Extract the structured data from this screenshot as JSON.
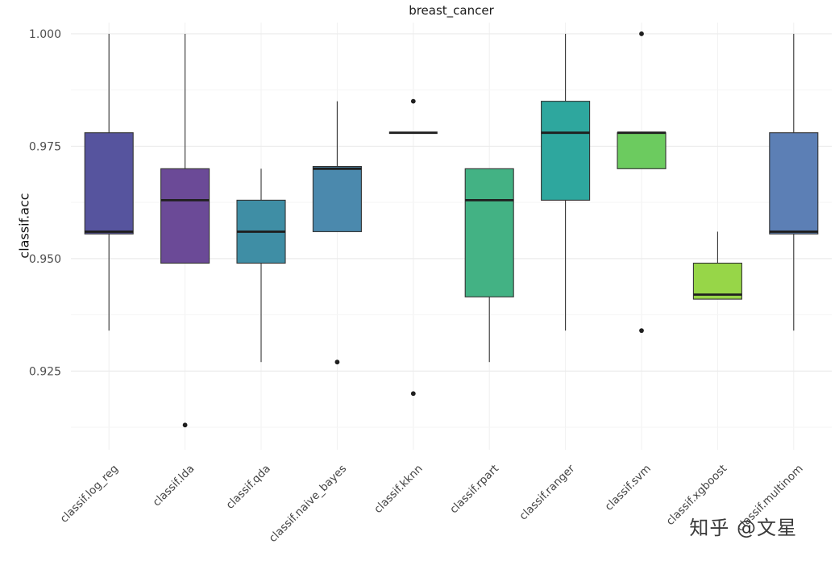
{
  "watermark": {
    "text": "知乎 @文星"
  },
  "chart_data": {
    "type": "boxplot",
    "title": "breast_cancer",
    "xlabel": "",
    "ylabel": "classif.acc",
    "ylim": [
      0.9075,
      1.0025
    ],
    "yticks": [
      0.925,
      0.95,
      0.975,
      1.0
    ],
    "ytick_labels": [
      "0.925",
      "0.950",
      "0.975",
      "1.000"
    ],
    "yticks_minor": [
      0.9125,
      0.9375,
      0.9625,
      0.9875
    ],
    "grid": true,
    "legend": "none",
    "categories": [
      "classif.log_reg",
      "classif.lda",
      "classif.qda",
      "classif.naive_bayes",
      "classif.kknn",
      "classif.rpart",
      "classif.ranger",
      "classif.svm",
      "classif.xgboost",
      "classif.multinom"
    ],
    "series": [
      {
        "name": "classif.log_reg",
        "low": 0.934,
        "q1": 0.9555,
        "med": 0.956,
        "q3": 0.978,
        "high": 1.0,
        "outliers": [],
        "color": "#56549e"
      },
      {
        "name": "classif.lda",
        "low": 0.949,
        "q1": 0.949,
        "med": 0.963,
        "q3": 0.97,
        "high": 1.0,
        "outliers": [
          0.913
        ],
        "color": "#6b4a97"
      },
      {
        "name": "classif.qda",
        "low": 0.927,
        "q1": 0.949,
        "med": 0.956,
        "q3": 0.963,
        "high": 0.97,
        "outliers": [],
        "color": "#3f8ea5"
      },
      {
        "name": "classif.naive_bayes",
        "low": 0.956,
        "q1": 0.956,
        "med": 0.97,
        "q3": 0.9705,
        "high": 0.985,
        "outliers": [
          0.927
        ],
        "color": "#4b89ad"
      },
      {
        "name": "classif.kknn",
        "low": 0.978,
        "q1": 0.978,
        "med": 0.978,
        "q3": 0.978,
        "high": 0.978,
        "outliers": [
          0.985,
          0.92
        ],
        "color": "#2d9e96"
      },
      {
        "name": "classif.rpart",
        "low": 0.927,
        "q1": 0.9415,
        "med": 0.963,
        "q3": 0.97,
        "high": 0.97,
        "outliers": [],
        "color": "#43b284"
      },
      {
        "name": "classif.ranger",
        "low": 0.934,
        "q1": 0.963,
        "med": 0.978,
        "q3": 0.985,
        "high": 1.0,
        "outliers": [],
        "color": "#2ea79e"
      },
      {
        "name": "classif.svm",
        "low": 0.97,
        "q1": 0.97,
        "med": 0.978,
        "q3": 0.978,
        "high": 0.978,
        "outliers": [
          1.0,
          0.934
        ],
        "color": "#6ccb5f"
      },
      {
        "name": "classif.xgboost",
        "low": 0.941,
        "q1": 0.941,
        "med": 0.942,
        "q3": 0.949,
        "high": 0.956,
        "outliers": [],
        "color": "#97d648"
      },
      {
        "name": "classif.multinom",
        "low": 0.934,
        "q1": 0.9555,
        "med": 0.956,
        "q3": 0.978,
        "high": 1.0,
        "outliers": [],
        "color": "#5c7fb5"
      }
    ],
    "style": {
      "box_stroke": "#333333",
      "median_stroke": "#1f1f1f",
      "whisker_stroke": "#333333",
      "outlier_fill": "#1f1f1f",
      "grid_major": "#ebebeb",
      "grid_minor": "#f5f5f5",
      "grid_vertical": "#f0f0f0",
      "tick_label_color": "#4e4e4e",
      "x_label_color": "#444444"
    }
  }
}
